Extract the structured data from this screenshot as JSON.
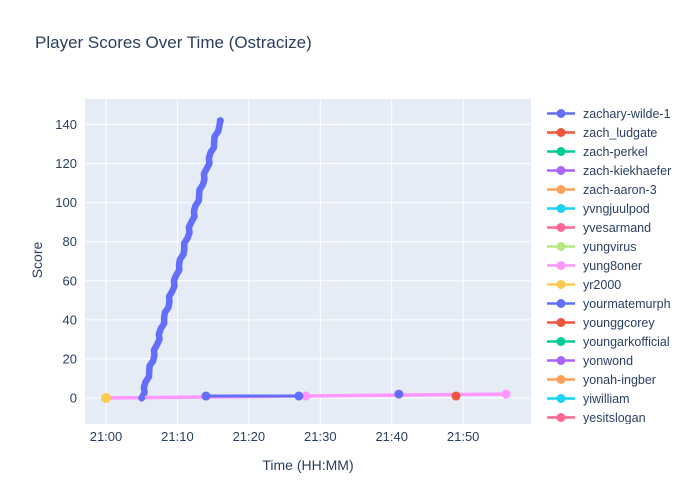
{
  "title": "Player Scores Over Time (Ostracize)",
  "chart_data": {
    "type": "line",
    "title": "Player Scores Over Time (Ostracize)",
    "xlabel": "Time (HH:MM)",
    "ylabel": "Score",
    "x_ticks": [
      "21:00",
      "21:10",
      "21:20",
      "21:30",
      "21:40",
      "21:50"
    ],
    "y_ticks": [
      0,
      20,
      40,
      60,
      80,
      100,
      120,
      140
    ],
    "ylim": [
      -13,
      153
    ],
    "xlim_minutes_after_2100": [
      -3,
      59.5
    ],
    "grid": true,
    "legend_position": "right",
    "plot_bg_color": "#E5ECF6",
    "grid_color": "#FFFFFF",
    "text_color": "#2a3f5f",
    "series": [
      {
        "name": "zachary-wilde-1",
        "color": "#636EFA",
        "line_width": 6.5,
        "marker_size": 3.5,
        "jitter": true,
        "points": [
          [
            "21:05",
            0
          ],
          [
            "21:16",
            142
          ]
        ]
      },
      {
        "name": "zach_ludgate",
        "color": "#EF553B",
        "line_width": 3,
        "marker_size": 4.5,
        "jitter": false,
        "points": [
          [
            "21:49",
            1
          ]
        ]
      },
      {
        "name": "zach-perkel",
        "color": "#00CC96",
        "line_width": 3,
        "marker_size": 4.5,
        "jitter": false,
        "points": []
      },
      {
        "name": "zach-kiekhaefer",
        "color": "#AB63FA",
        "line_width": 3,
        "marker_size": 4.5,
        "jitter": false,
        "points": []
      },
      {
        "name": "zach-aaron-3",
        "color": "#FFA15A",
        "line_width": 3,
        "marker_size": 4.5,
        "jitter": false,
        "points": []
      },
      {
        "name": "yvngjuulpod",
        "color": "#19D3F3",
        "line_width": 3,
        "marker_size": 4.5,
        "jitter": false,
        "points": []
      },
      {
        "name": "yvesarmand",
        "color": "#FF6692",
        "line_width": 3,
        "marker_size": 4.5,
        "jitter": false,
        "points": []
      },
      {
        "name": "yungvirus",
        "color": "#B6E880",
        "line_width": 3,
        "marker_size": 4.5,
        "jitter": false,
        "points": []
      },
      {
        "name": "yung8oner",
        "color": "#FF97FF",
        "line_width": 3.5,
        "marker_size": 4.5,
        "jitter": false,
        "points": [
          [
            "21:00",
            0
          ],
          [
            "21:28",
            1
          ],
          [
            "21:56",
            2
          ]
        ]
      },
      {
        "name": "yr2000",
        "color": "#FECB52",
        "line_width": 3,
        "marker_size": 5,
        "jitter": false,
        "points": [
          [
            "21:00",
            0
          ]
        ]
      },
      {
        "name": "yourmatemurph",
        "color": "#636EFA",
        "line_width": 3,
        "marker_size": 4.5,
        "jitter": false,
        "points": [
          [
            "21:14",
            1
          ],
          [
            "21:27",
            1
          ],
          [
            "21:41",
            2
          ]
        ],
        "gaps": [
          1
        ]
      },
      {
        "name": "younggcorey",
        "color": "#EF553B",
        "line_width": 3,
        "marker_size": 4.5,
        "jitter": false,
        "points": []
      },
      {
        "name": "youngarkofficial",
        "color": "#00CC96",
        "line_width": 3,
        "marker_size": 4.5,
        "jitter": false,
        "points": []
      },
      {
        "name": "yonwond",
        "color": "#AB63FA",
        "line_width": 3,
        "marker_size": 4.5,
        "jitter": false,
        "points": []
      },
      {
        "name": "yonah-ingber",
        "color": "#FFA15A",
        "line_width": 3,
        "marker_size": 4.5,
        "jitter": false,
        "points": []
      },
      {
        "name": "yiwilliam",
        "color": "#19D3F3",
        "line_width": 3,
        "marker_size": 4.5,
        "jitter": false,
        "points": []
      },
      {
        "name": "yesitslogan",
        "color": "#FF6692",
        "line_width": 3,
        "marker_size": 4.5,
        "jitter": false,
        "points": []
      }
    ]
  }
}
